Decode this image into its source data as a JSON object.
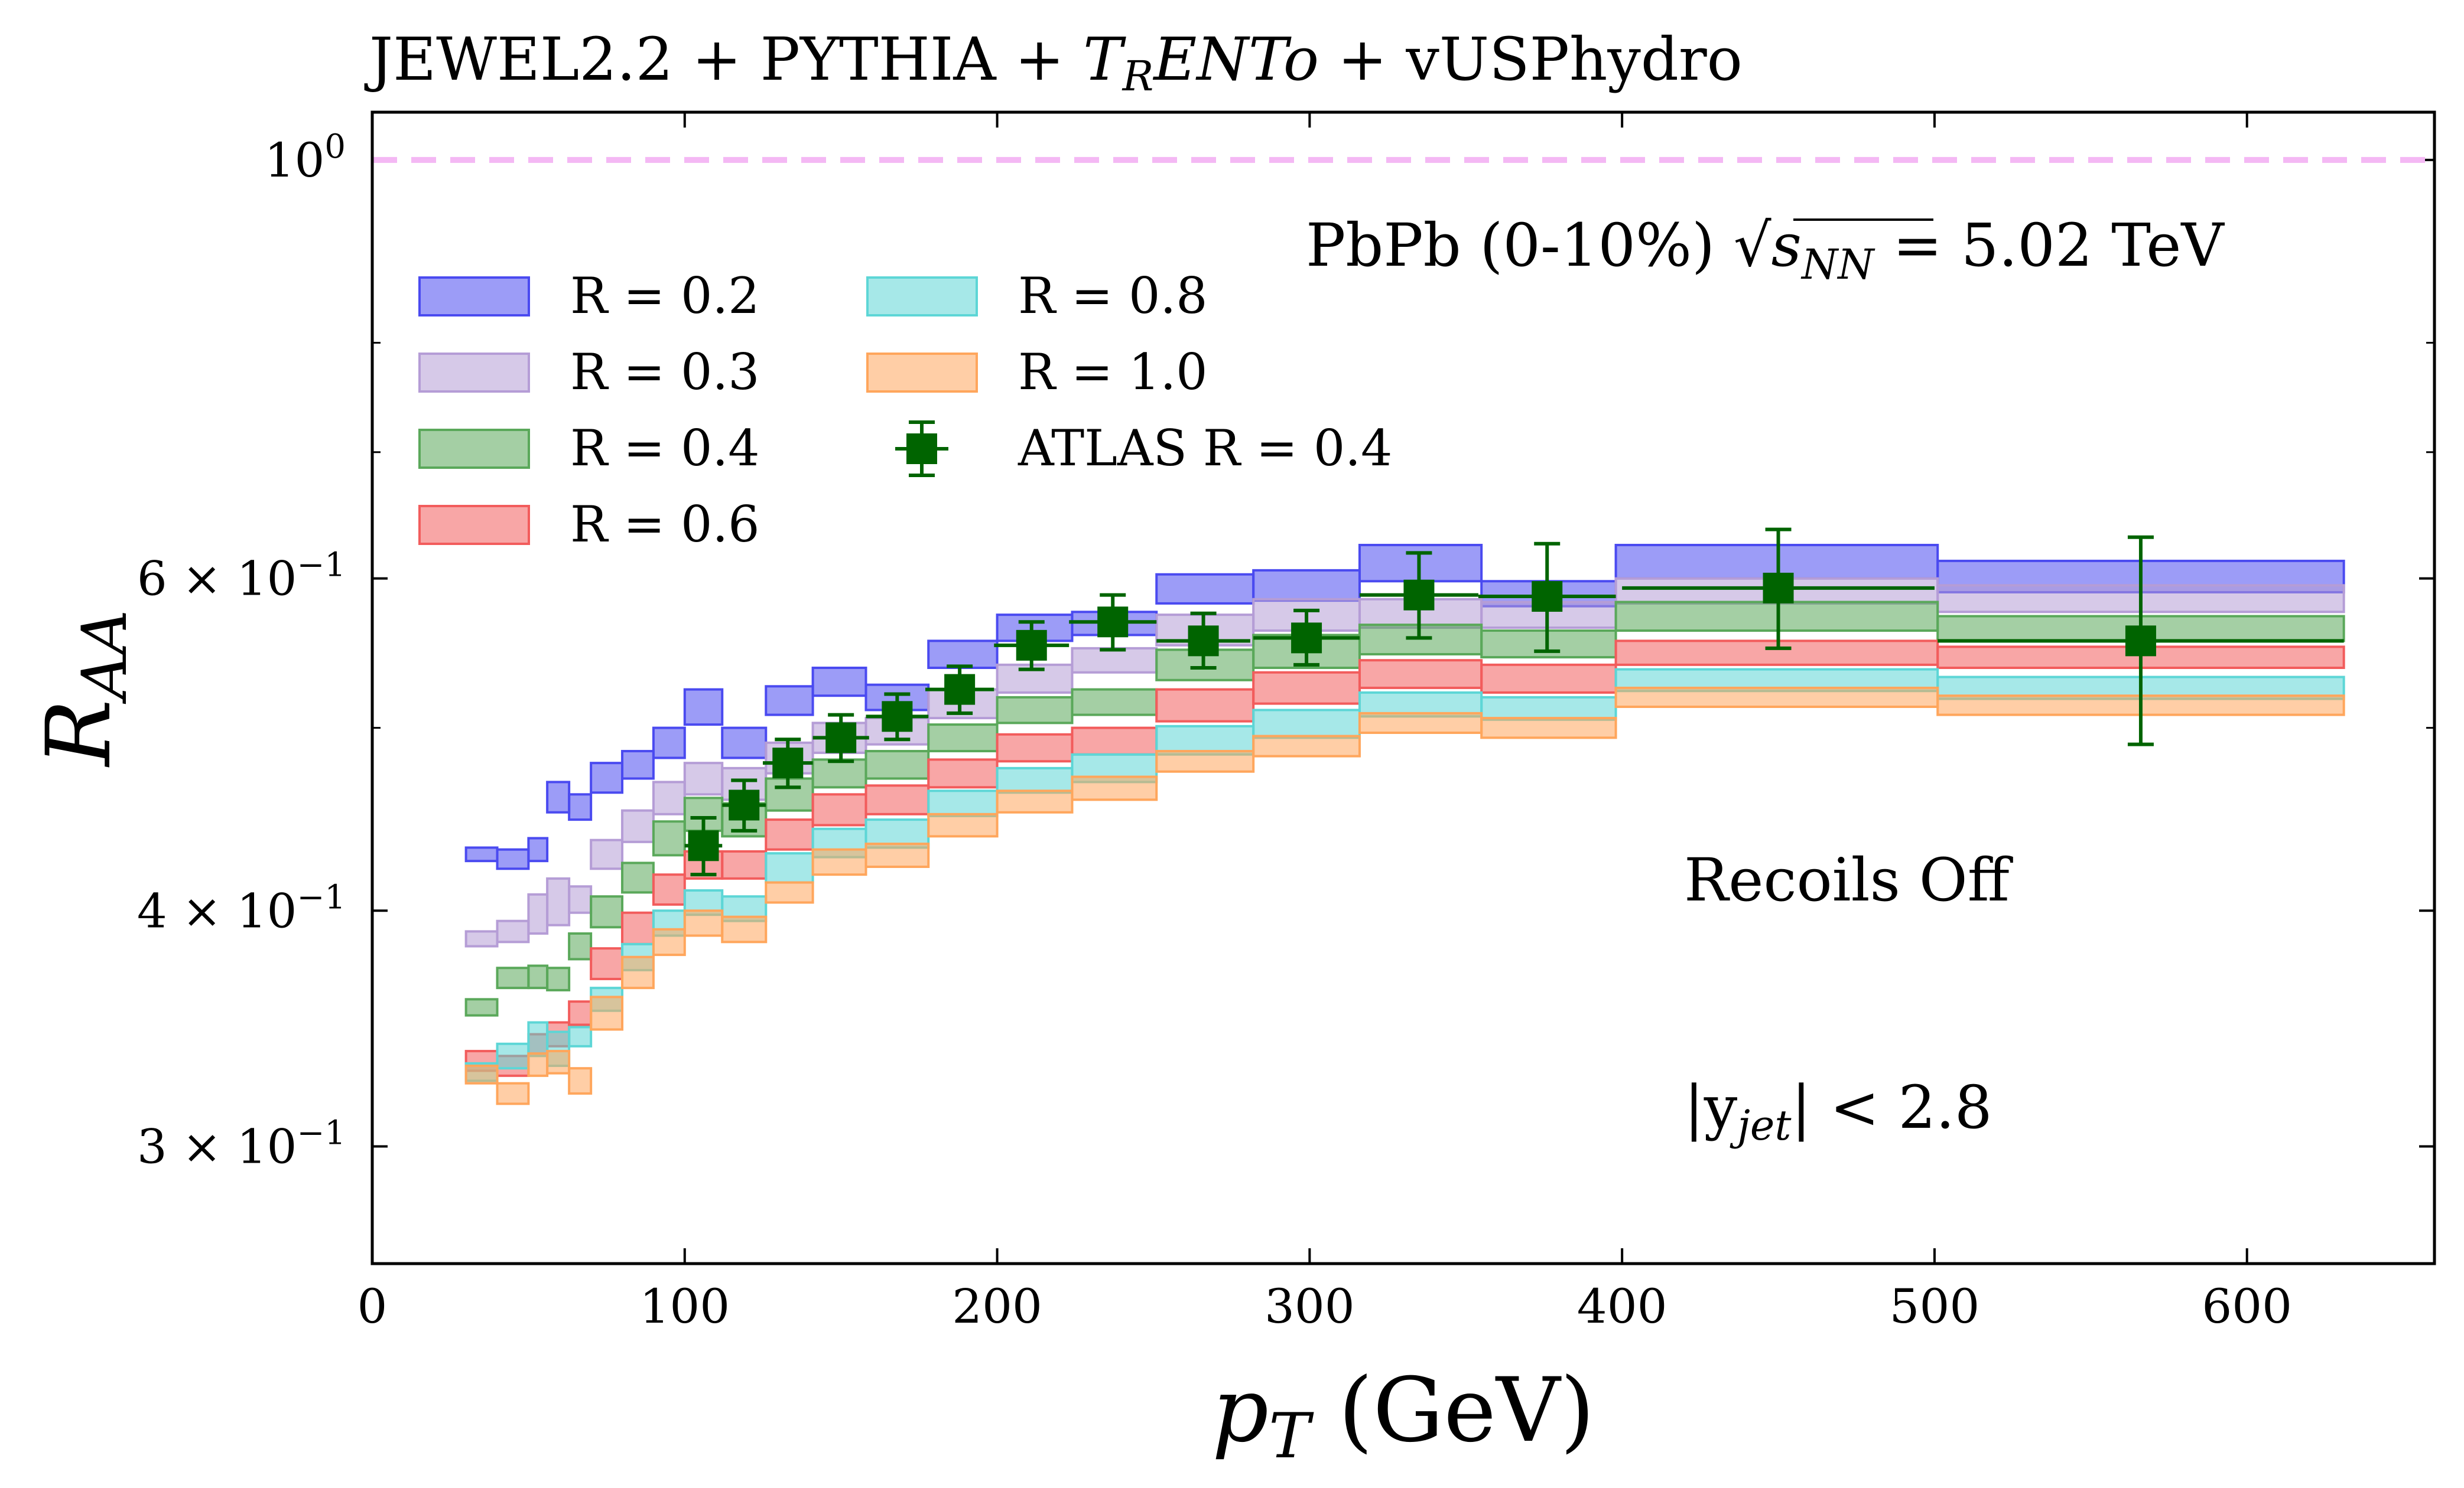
{
  "chart_data": {
    "type": "step-band",
    "title": "JEWEL2.2 + PYTHIA + TRENTo + vUSPhydro",
    "title_parts": [
      "JEWEL2.2 + PYTHIA + ",
      "T",
      "R",
      "ENTo",
      " + vUSPhydro"
    ],
    "xlabel": "pT (GeV)",
    "xlabel_parts": [
      "p",
      "T",
      " (GeV)"
    ],
    "ylabel": "RAA",
    "ylabel_parts": [
      "R",
      "AA"
    ],
    "xlim": [
      0,
      660
    ],
    "ylim": [
      0.26,
      1.06
    ],
    "yscale": "log",
    "x_ticks": [
      0,
      100,
      200,
      300,
      400,
      500,
      600
    ],
    "x_tick_labels": [
      "0",
      "100",
      "200",
      "300",
      "400",
      "500",
      "600"
    ],
    "y_ticks": [
      1.0,
      0.6,
      0.4,
      0.3
    ],
    "y_tick_labels": [
      {
        "base": "10",
        "exp": "0",
        "text": "10^0"
      },
      {
        "base": "6 × 10",
        "exp": "−1",
        "text": "6 × 10^−1"
      },
      {
        "base": "4 × 10",
        "exp": "−1",
        "text": "4 × 10^−1"
      },
      {
        "base": "3 × 10",
        "exp": "−1",
        "text": "3 × 10^−1"
      }
    ],
    "y_minor_ticks": [
      0.8,
      0.7,
      0.5
    ],
    "reference_line": {
      "y": 1.0,
      "color": "#f4b8f4",
      "style": "dashed"
    },
    "annotations": [
      {
        "text": "PbPb (0-10%) √sNN = 5.02 TeV",
        "prefix": "PbPb (0-10%) ",
        "sqrt": "s",
        "sqrt_sub": "NN",
        "suffix": " = 5.02 TeV"
      },
      {
        "text": "Recoils Off"
      },
      {
        "text": "|yjet| < 2.8",
        "prefix": "|y",
        "sub": "jet",
        "suffix": "| < 2.8"
      }
    ],
    "bins": [
      30,
      40,
      50,
      56,
      63,
      70,
      80,
      90,
      100,
      112,
      126,
      141,
      158,
      178,
      200,
      224,
      251,
      282,
      316,
      355,
      398,
      501,
      631
    ],
    "series": [
      {
        "name": "R = 0.2",
        "color": "#4a4af0",
        "lower": [
          0.425,
          0.421,
          0.425,
          0.451,
          0.447,
          0.462,
          0.47,
          0.482,
          0.502,
          0.482,
          0.508,
          0.52,
          0.511,
          0.538,
          0.556,
          0.56,
          0.582,
          0.584,
          0.598,
          0.58,
          0.6,
          0.59
        ],
        "upper": [
          0.432,
          0.431,
          0.437,
          0.468,
          0.461,
          0.479,
          0.486,
          0.5,
          0.524,
          0.5,
          0.526,
          0.538,
          0.527,
          0.556,
          0.574,
          0.576,
          0.603,
          0.606,
          0.625,
          0.598,
          0.625,
          0.613
        ]
      },
      {
        "name": "R = 0.3",
        "color": "#b59dd6",
        "lower": [
          0.383,
          0.385,
          0.389,
          0.393,
          0.399,
          0.421,
          0.435,
          0.45,
          0.461,
          0.458,
          0.473,
          0.485,
          0.49,
          0.506,
          0.522,
          0.535,
          0.553,
          0.563,
          0.565,
          0.565,
          0.582,
          0.576
        ],
        "upper": [
          0.39,
          0.395,
          0.408,
          0.416,
          0.412,
          0.436,
          0.452,
          0.468,
          0.479,
          0.476,
          0.491,
          0.503,
          0.506,
          0.524,
          0.54,
          0.551,
          0.574,
          0.585,
          0.585,
          0.583,
          0.6,
          0.595
        ]
      },
      {
        "name": "R = 0.4",
        "color": "#5aa85a",
        "lower": [
          0.352,
          0.364,
          0.364,
          0.363,
          0.377,
          0.392,
          0.409,
          0.428,
          0.441,
          0.438,
          0.452,
          0.465,
          0.47,
          0.486,
          0.503,
          0.508,
          0.53,
          0.538,
          0.547,
          0.545,
          0.563,
          0.556
        ],
        "upper": [
          0.359,
          0.373,
          0.374,
          0.373,
          0.389,
          0.407,
          0.424,
          0.446,
          0.459,
          0.456,
          0.47,
          0.481,
          0.486,
          0.502,
          0.519,
          0.524,
          0.55,
          0.56,
          0.567,
          0.563,
          0.583,
          0.573
        ]
      },
      {
        "name": "R = 0.6",
        "color": "#f25c5c",
        "lower": [
          0.329,
          0.327,
          0.336,
          0.339,
          0.348,
          0.368,
          0.384,
          0.403,
          0.416,
          0.416,
          0.431,
          0.444,
          0.45,
          0.465,
          0.48,
          0.484,
          0.504,
          0.515,
          0.525,
          0.522,
          0.54,
          0.538
        ],
        "upper": [
          0.337,
          0.335,
          0.344,
          0.349,
          0.358,
          0.382,
          0.399,
          0.418,
          0.43,
          0.43,
          0.447,
          0.461,
          0.466,
          0.481,
          0.496,
          0.5,
          0.524,
          0.535,
          0.543,
          0.54,
          0.556,
          0.552
        ]
      },
      {
        "name": "R = 0.8",
        "color": "#5dd6d6",
        "lower": [
          0.325,
          0.33,
          0.335,
          0.331,
          0.339,
          0.354,
          0.372,
          0.388,
          0.398,
          0.395,
          0.414,
          0.427,
          0.432,
          0.449,
          0.462,
          0.468,
          0.484,
          0.494,
          0.507,
          0.505,
          0.523,
          0.518
        ],
        "upper": [
          0.332,
          0.34,
          0.349,
          0.345,
          0.347,
          0.364,
          0.384,
          0.4,
          0.41,
          0.407,
          0.429,
          0.442,
          0.447,
          0.463,
          0.476,
          0.484,
          0.501,
          0.511,
          0.522,
          0.519,
          0.537,
          0.532
        ]
      },
      {
        "name": "R = 1.0",
        "color": "#ffa65c",
        "lower": [
          0.324,
          0.316,
          0.327,
          0.328,
          0.32,
          0.346,
          0.364,
          0.379,
          0.388,
          0.385,
          0.404,
          0.418,
          0.422,
          0.438,
          0.451,
          0.458,
          0.474,
          0.483,
          0.497,
          0.494,
          0.513,
          0.508
        ],
        "upper": [
          0.331,
          0.324,
          0.336,
          0.337,
          0.33,
          0.36,
          0.378,
          0.391,
          0.4,
          0.397,
          0.414,
          0.431,
          0.434,
          0.45,
          0.463,
          0.471,
          0.486,
          0.495,
          0.509,
          0.506,
          0.525,
          0.52
        ]
      }
    ],
    "atlas": {
      "name": "ATLAS R = 0.4",
      "color": "#006400",
      "points": [
        {
          "x": 106,
          "y": 0.433,
          "xerr": 6,
          "ylo": 0.418,
          "yhi": 0.448
        },
        {
          "x": 119,
          "y": 0.455,
          "xerr": 7,
          "ylo": 0.441,
          "yhi": 0.469
        },
        {
          "x": 133,
          "y": 0.479,
          "xerr": 8,
          "ylo": 0.465,
          "yhi": 0.493
        },
        {
          "x": 150,
          "y": 0.494,
          "xerr": 9,
          "ylo": 0.48,
          "yhi": 0.508
        },
        {
          "x": 168,
          "y": 0.507,
          "xerr": 10,
          "ylo": 0.493,
          "yhi": 0.521
        },
        {
          "x": 188,
          "y": 0.524,
          "xerr": 11,
          "ylo": 0.509,
          "yhi": 0.539
        },
        {
          "x": 211,
          "y": 0.553,
          "xerr": 12,
          "ylo": 0.537,
          "yhi": 0.569
        },
        {
          "x": 237,
          "y": 0.569,
          "xerr": 14,
          "ylo": 0.55,
          "yhi": 0.588
        },
        {
          "x": 266,
          "y": 0.556,
          "xerr": 15,
          "ylo": 0.538,
          "yhi": 0.575
        },
        {
          "x": 299,
          "y": 0.558,
          "xerr": 17,
          "ylo": 0.54,
          "yhi": 0.577
        },
        {
          "x": 335,
          "y": 0.588,
          "xerr": 19,
          "ylo": 0.558,
          "yhi": 0.619
        },
        {
          "x": 376,
          "y": 0.587,
          "xerr": 22,
          "ylo": 0.549,
          "yhi": 0.626
        },
        {
          "x": 450,
          "y": 0.593,
          "xerr": 50,
          "ylo": 0.551,
          "yhi": 0.637
        },
        {
          "x": 566,
          "y": 0.556,
          "xerr": 65,
          "ylo": 0.49,
          "yhi": 0.631
        }
      ]
    }
  }
}
